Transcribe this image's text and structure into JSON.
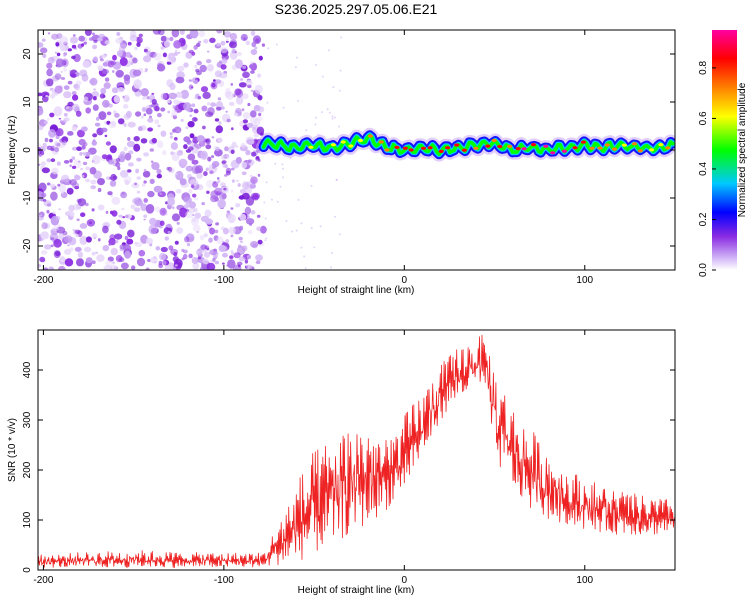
{
  "title": "S236.2025.297.05.06.E21",
  "chart_data": [
    {
      "type": "heatmap",
      "name": "spectrogram",
      "xlabel": "Height of straight line (km)",
      "ylabel": "Frequency (Hz)",
      "xlim": [
        -203,
        150
      ],
      "ylim": [
        -25,
        25
      ],
      "xticks": [
        -200,
        -100,
        0,
        100
      ],
      "yticks": [
        -20,
        -10,
        0,
        10,
        20
      ],
      "colorbar": {
        "label": "Normalized spectral amplitude",
        "range": [
          0,
          0.95
        ],
        "ticks": [
          0.0,
          0.2,
          0.4,
          0.6,
          0.8
        ],
        "colors": [
          "#ffffff",
          "#c9a6f5",
          "#8a2be2",
          "#0000ff",
          "#00c8ff",
          "#00ff00",
          "#ffff00",
          "#ff8000",
          "#ff0000",
          "#ff00a0"
        ]
      },
      "noise_region_x": [
        -203,
        -78
      ],
      "signal_trace": {
        "x": [
          -78,
          -70,
          -60,
          -50,
          -40,
          -30,
          -20,
          -10,
          0,
          10,
          20,
          30,
          40,
          50,
          60,
          70,
          80,
          90,
          100,
          110,
          120,
          130,
          140,
          150
        ],
        "freq_hz": [
          1.5,
          1.0,
          0.5,
          1.0,
          0.5,
          1.5,
          2.5,
          0.5,
          0.0,
          0.5,
          0.0,
          0.5,
          1.0,
          1.5,
          0.0,
          0.5,
          0.0,
          0.5,
          1.0,
          0.5,
          1.0,
          0.5,
          0.5,
          1.0
        ],
        "amplitude": [
          0.4,
          0.5,
          0.55,
          0.6,
          0.6,
          0.65,
          0.7,
          0.75,
          0.8,
          0.85,
          0.9,
          0.9,
          0.85,
          0.8,
          0.85,
          0.9,
          0.9,
          0.9,
          0.85,
          0.8,
          0.8,
          0.75,
          0.7,
          0.7
        ]
      }
    },
    {
      "type": "line",
      "name": "snr",
      "xlabel": "Height of straight line (km)",
      "ylabel": "SNR (10 * v/v)",
      "xlim": [
        -203,
        150
      ],
      "ylim": [
        0,
        480
      ],
      "xticks": [
        -200,
        -100,
        0,
        100
      ],
      "yticks": [
        0,
        100,
        200,
        300,
        400
      ],
      "color": "#ee2222",
      "envelope": {
        "x": [
          -203,
          -180,
          -150,
          -120,
          -90,
          -78,
          -70,
          -60,
          -50,
          -40,
          -30,
          -20,
          -10,
          0,
          10,
          20,
          30,
          40,
          45,
          50,
          60,
          70,
          80,
          90,
          100,
          110,
          120,
          130,
          140,
          150
        ],
        "low": [
          5,
          5,
          5,
          5,
          5,
          5,
          10,
          15,
          30,
          50,
          70,
          90,
          120,
          160,
          220,
          300,
          340,
          360,
          360,
          220,
          160,
          120,
          100,
          90,
          80,
          75,
          70,
          70,
          70,
          75
        ],
        "high": [
          30,
          35,
          40,
          35,
          35,
          35,
          95,
          175,
          240,
          265,
          295,
          300,
          260,
          310,
          360,
          410,
          450,
          470,
          470,
          410,
          330,
          285,
          240,
          205,
          185,
          170,
          160,
          150,
          145,
          140
        ]
      }
    }
  ]
}
